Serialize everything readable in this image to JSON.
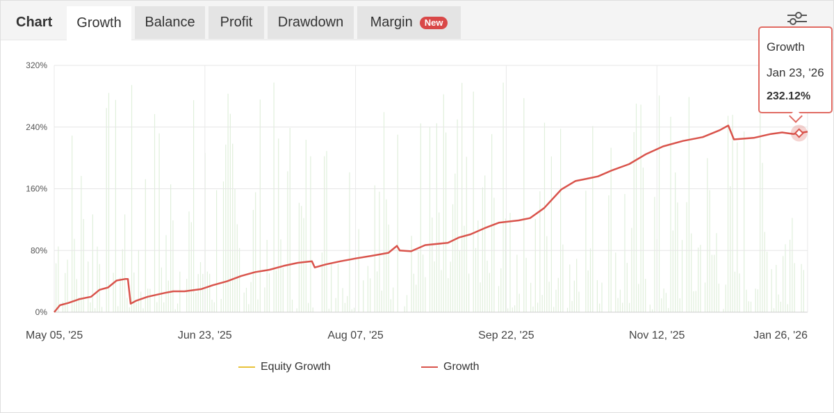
{
  "tabs": {
    "title": "Chart",
    "items": [
      {
        "label": "Growth",
        "active": true
      },
      {
        "label": "Balance",
        "active": false
      },
      {
        "label": "Profit",
        "active": false
      },
      {
        "label": "Drawdown",
        "active": false
      },
      {
        "label": "Margin",
        "active": false,
        "badge": "New"
      }
    ]
  },
  "settings_icon": "sliders-icon",
  "tooltip": {
    "series": "Growth",
    "date": "Jan 23, '26",
    "value": "232.12%"
  },
  "colors": {
    "growth": "#d9534b",
    "equity": "#e8c23a",
    "volume": "#d8ebd2",
    "tooltip_border": "#e06a62"
  },
  "chart_data": {
    "type": "line",
    "x_range": [
      "2025-05-05",
      "2026-01-26"
    ],
    "x_ticks": [
      "May 05, '25",
      "Jun 23, '25",
      "Aug 07, '25",
      "Sep 22, '25",
      "Nov 12, '25",
      "Jan 26, '26"
    ],
    "y_ticks": [
      "0%",
      "80%",
      "160%",
      "240%",
      "320%"
    ],
    "ylim": [
      0,
      320
    ],
    "grid": true,
    "legend_position": "bottom",
    "series": [
      {
        "name": "Equity Growth",
        "values": []
      },
      {
        "name": "Growth",
        "points": [
          [
            "2025-05-05",
            0
          ],
          [
            "2025-05-07",
            9
          ],
          [
            "2025-05-10",
            12
          ],
          [
            "2025-05-14",
            17
          ],
          [
            "2025-05-18",
            20
          ],
          [
            "2025-05-21",
            29
          ],
          [
            "2025-05-24",
            32
          ],
          [
            "2025-05-27",
            41
          ],
          [
            "2025-05-30",
            43
          ],
          [
            "2025-05-31",
            43
          ],
          [
            "2025-06-01",
            11
          ],
          [
            "2025-06-03",
            15
          ],
          [
            "2025-06-07",
            20
          ],
          [
            "2025-06-13",
            25
          ],
          [
            "2025-06-16",
            27
          ],
          [
            "2025-06-20",
            27
          ],
          [
            "2025-06-26",
            30
          ],
          [
            "2025-06-30",
            35
          ],
          [
            "2025-07-05",
            40
          ],
          [
            "2025-07-10",
            47
          ],
          [
            "2025-07-15",
            52
          ],
          [
            "2025-07-20",
            55
          ],
          [
            "2025-07-25",
            60
          ],
          [
            "2025-07-30",
            64
          ],
          [
            "2025-08-04",
            66
          ],
          [
            "2025-08-05",
            58
          ],
          [
            "2025-08-09",
            62
          ],
          [
            "2025-08-14",
            66
          ],
          [
            "2025-08-20",
            70
          ],
          [
            "2025-08-25",
            73
          ],
          [
            "2025-08-31",
            77
          ],
          [
            "2025-09-03",
            86
          ],
          [
            "2025-09-04",
            80
          ],
          [
            "2025-09-08",
            79
          ],
          [
            "2025-09-13",
            87
          ],
          [
            "2025-09-21",
            90
          ],
          [
            "2025-09-25",
            97
          ],
          [
            "2025-09-29",
            101
          ],
          [
            "2025-10-04",
            109
          ],
          [
            "2025-10-09",
            116
          ],
          [
            "2025-10-16",
            119
          ],
          [
            "2025-10-20",
            122
          ],
          [
            "2025-10-25",
            135
          ],
          [
            "2025-10-31",
            159
          ],
          [
            "2025-11-05",
            170
          ],
          [
            "2025-11-09",
            173
          ],
          [
            "2025-11-13",
            176
          ],
          [
            "2025-11-18",
            184
          ],
          [
            "2025-11-24",
            192
          ],
          [
            "2025-11-30",
            205
          ],
          [
            "2025-12-06",
            215
          ],
          [
            "2025-12-13",
            222
          ],
          [
            "2025-12-20",
            227
          ],
          [
            "2025-12-26",
            236
          ],
          [
            "2025-12-29",
            242
          ],
          [
            "2025-12-31",
            224
          ],
          [
            "2026-01-07",
            226
          ],
          [
            "2026-01-13",
            231
          ],
          [
            "2026-01-17",
            233
          ],
          [
            "2026-01-21",
            231
          ],
          [
            "2026-01-23",
            232.12
          ],
          [
            "2026-01-26",
            234
          ]
        ]
      }
    ]
  }
}
